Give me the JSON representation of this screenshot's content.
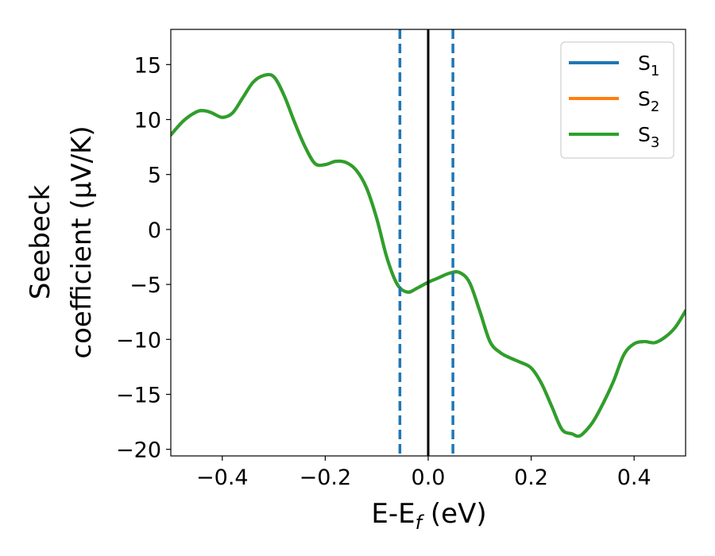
{
  "chart_data": {
    "type": "line",
    "xlabel": "E-E",
    "xlabel_sub": "f",
    "xlabel_unit": " (eV)",
    "ylabel_line1": "Seebeck",
    "ylabel_line2": "coefficient  (μV/K)",
    "xlim": [
      -0.5,
      0.5
    ],
    "ylim": [
      -20.6,
      18.2
    ],
    "xticks": [
      -0.4,
      -0.2,
      0.0,
      0.2,
      0.4
    ],
    "xtick_labels": [
      "−0.4",
      "−0.2",
      "0.0",
      "0.2",
      "0.4"
    ],
    "yticks": [
      15,
      10,
      5,
      0,
      -5,
      -10,
      -15,
      -20
    ],
    "ytick_labels": [
      "15",
      "10",
      "5",
      "0",
      "−5",
      "−10",
      "−15",
      "−20"
    ],
    "grid": false,
    "legend_placement": "top-right",
    "vertical_lines": [
      {
        "x": -0.055,
        "style": "dashed",
        "color": "#1f77b4"
      },
      {
        "x": 0.0,
        "style": "solid",
        "color": "#000000"
      },
      {
        "x": 0.048,
        "style": "dashed",
        "color": "#1f77b4"
      }
    ],
    "x": [
      -0.5,
      -0.475,
      -0.45,
      -0.435,
      -0.42,
      -0.4,
      -0.38,
      -0.36,
      -0.34,
      -0.32,
      -0.3,
      -0.28,
      -0.26,
      -0.24,
      -0.22,
      -0.2,
      -0.18,
      -0.16,
      -0.14,
      -0.12,
      -0.1,
      -0.08,
      -0.06,
      -0.04,
      -0.02,
      0.0,
      0.02,
      0.04,
      0.06,
      0.08,
      0.1,
      0.12,
      0.14,
      0.16,
      0.18,
      0.2,
      0.22,
      0.24,
      0.26,
      0.28,
      0.29,
      0.3,
      0.32,
      0.34,
      0.36,
      0.38,
      0.4,
      0.42,
      0.44,
      0.46,
      0.48,
      0.5
    ],
    "series": [
      {
        "name": "S",
        "sub": "1",
        "color": "#1f77b4",
        "values": [
          8.6,
          9.9,
          10.7,
          10.8,
          10.6,
          10.2,
          10.6,
          12.0,
          13.4,
          14.0,
          13.9,
          12.2,
          9.8,
          7.6,
          6.0,
          5.9,
          6.2,
          6.1,
          5.4,
          3.8,
          1.0,
          -2.6,
          -5.0,
          -5.7,
          -5.3,
          -4.8,
          -4.4,
          -4.0,
          -3.9,
          -4.8,
          -7.4,
          -10.2,
          -11.2,
          -11.7,
          -12.1,
          -12.6,
          -14.0,
          -16.1,
          -18.2,
          -18.6,
          -18.8,
          -18.6,
          -17.5,
          -15.8,
          -13.8,
          -11.4,
          -10.4,
          -10.2,
          -10.3,
          -9.8,
          -8.9,
          -7.4
        ]
      },
      {
        "name": "S",
        "sub": "2",
        "color": "#ff7f0e",
        "values": [
          8.6,
          9.9,
          10.7,
          10.8,
          10.6,
          10.2,
          10.6,
          12.0,
          13.4,
          14.0,
          13.9,
          12.2,
          9.8,
          7.6,
          6.0,
          5.9,
          6.2,
          6.1,
          5.4,
          3.8,
          1.0,
          -2.6,
          -5.0,
          -5.7,
          -5.3,
          -4.8,
          -4.4,
          -4.0,
          -3.9,
          -4.8,
          -7.4,
          -10.2,
          -11.2,
          -11.7,
          -12.1,
          -12.6,
          -14.0,
          -16.1,
          -18.2,
          -18.6,
          -18.8,
          -18.6,
          -17.5,
          -15.8,
          -13.8,
          -11.4,
          -10.4,
          -10.2,
          -10.3,
          -9.8,
          -8.9,
          -7.4
        ]
      },
      {
        "name": "S",
        "sub": "3",
        "color": "#2ca02c",
        "values": [
          8.6,
          9.9,
          10.7,
          10.8,
          10.6,
          10.2,
          10.6,
          12.0,
          13.4,
          14.0,
          13.9,
          12.2,
          9.8,
          7.6,
          6.0,
          5.9,
          6.2,
          6.1,
          5.4,
          3.8,
          1.0,
          -2.6,
          -5.0,
          -5.7,
          -5.3,
          -4.8,
          -4.4,
          -4.0,
          -3.9,
          -4.8,
          -7.4,
          -10.2,
          -11.2,
          -11.7,
          -12.1,
          -12.6,
          -14.0,
          -16.1,
          -18.2,
          -18.6,
          -18.8,
          -18.6,
          -17.5,
          -15.8,
          -13.8,
          -11.4,
          -10.4,
          -10.2,
          -10.3,
          -9.8,
          -8.9,
          -7.4
        ]
      }
    ]
  }
}
